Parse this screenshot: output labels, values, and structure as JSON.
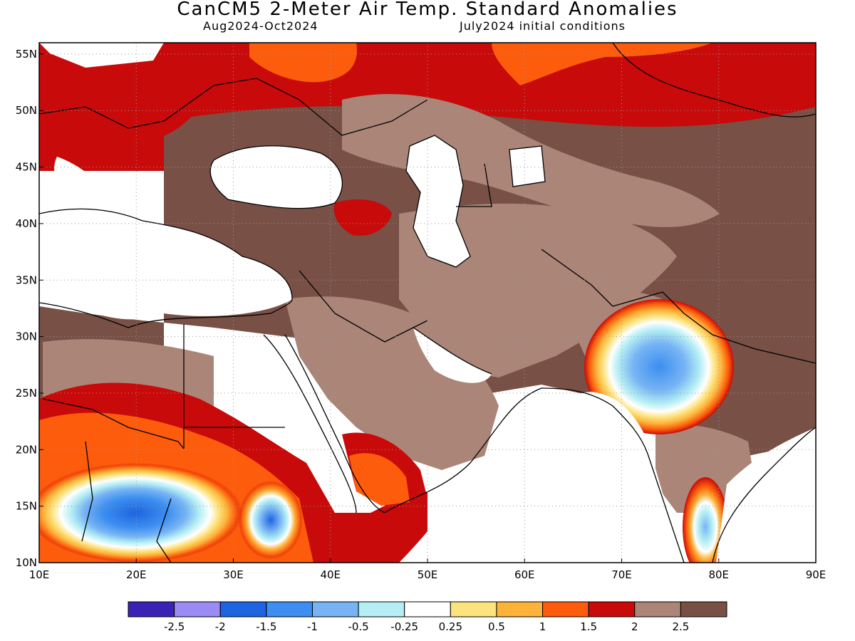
{
  "header": {
    "title": "CanCM5 2-Meter Air Temp. Standard Anomalies",
    "period": "Aug2024-Oct2024",
    "init": "July2024 initial conditions"
  },
  "map": {
    "lon_range": [
      10,
      90
    ],
    "lat_range": [
      10,
      56
    ],
    "lon_ticks": [
      {
        "value": 10,
        "label": "10E"
      },
      {
        "value": 20,
        "label": "20E"
      },
      {
        "value": 30,
        "label": "30E"
      },
      {
        "value": 40,
        "label": "40E"
      },
      {
        "value": 50,
        "label": "50E"
      },
      {
        "value": 60,
        "label": "60E"
      },
      {
        "value": 70,
        "label": "70E"
      },
      {
        "value": 80,
        "label": "80E"
      },
      {
        "value": 90,
        "label": "90E"
      }
    ],
    "lat_ticks": [
      {
        "value": 10,
        "label": "10N"
      },
      {
        "value": 15,
        "label": "15N"
      },
      {
        "value": 20,
        "label": "20N"
      },
      {
        "value": 25,
        "label": "25N"
      },
      {
        "value": 30,
        "label": "30N"
      },
      {
        "value": 35,
        "label": "35N"
      },
      {
        "value": 40,
        "label": "40N"
      },
      {
        "value": 45,
        "label": "45N"
      },
      {
        "value": 50,
        "label": "50N"
      },
      {
        "value": 55,
        "label": "55N"
      }
    ],
    "gridlines": "dotted"
  },
  "legend": {
    "colors": [
      "#3a23b4",
      "#9a8cf4",
      "#1e64e0",
      "#3c8ef0",
      "#78b4f4",
      "#b4eef4",
      "#ffffff",
      "#fde37e",
      "#fdb33a",
      "#fc5c0c",
      "#c80a0a",
      "#aa8578",
      "#785046"
    ],
    "labels": [
      "-2.5",
      "-2",
      "-1.5",
      "-1",
      "-0.5",
      "-0.25",
      "0.25",
      "0.5",
      "1",
      "1.5",
      "2",
      "2.5"
    ]
  }
}
